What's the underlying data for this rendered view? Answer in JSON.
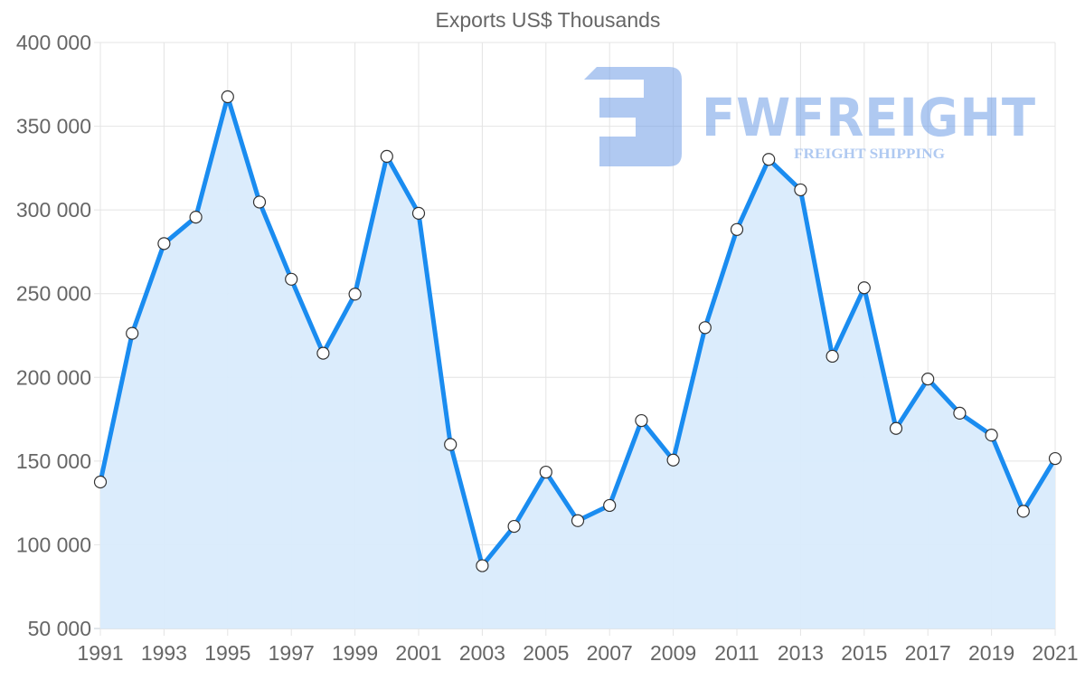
{
  "chart_data": {
    "type": "area",
    "title": "Exports US$ Thousands",
    "xlabel": "",
    "ylabel": "",
    "x": [
      1991,
      1992,
      1993,
      1994,
      1995,
      1996,
      1997,
      1998,
      1999,
      2000,
      2001,
      2002,
      2003,
      2004,
      2005,
      2006,
      2007,
      2008,
      2009,
      2010,
      2011,
      2012,
      2013,
      2014,
      2015,
      2016,
      2017,
      2018,
      2019,
      2020,
      2021
    ],
    "series": [
      {
        "name": "Exports",
        "values": [
          137500,
          226300,
          279900,
          295700,
          367600,
          304700,
          258600,
          214400,
          249700,
          332000,
          298000,
          159900,
          87500,
          111000,
          143400,
          114400,
          123500,
          174200,
          150600,
          229700,
          288300,
          330200,
          312000,
          212600,
          253500,
          169500,
          199000,
          178600,
          165500,
          120000,
          151500
        ]
      }
    ],
    "ylim": [
      50000,
      400000
    ],
    "yticks": [
      400000,
      350000,
      300000,
      250000,
      200000,
      150000,
      100000,
      50000
    ],
    "ytick_labels": [
      "400 000",
      "350 000",
      "300 000",
      "250 000",
      "200 000",
      "150 000",
      "100 000",
      "50 000"
    ],
    "xtick_labels": [
      "1991",
      "1993",
      "1995",
      "1997",
      "1999",
      "2001",
      "2003",
      "2005",
      "2007",
      "2009",
      "2011",
      "2013",
      "2015",
      "2017",
      "2019",
      "2021"
    ],
    "grid": true,
    "legend": null,
    "colors": {
      "line": "#1a8cf0",
      "fill": "#d9ebfc",
      "point_fill": "#ffffff",
      "point_stroke": "#333333",
      "text": "#666666",
      "grid": "#e4e4e4"
    }
  },
  "watermark": {
    "brand": "FWFREIGHT",
    "tagline": "FREIGHT SHIPPING",
    "icon": "fw-logo-mark-icon"
  }
}
